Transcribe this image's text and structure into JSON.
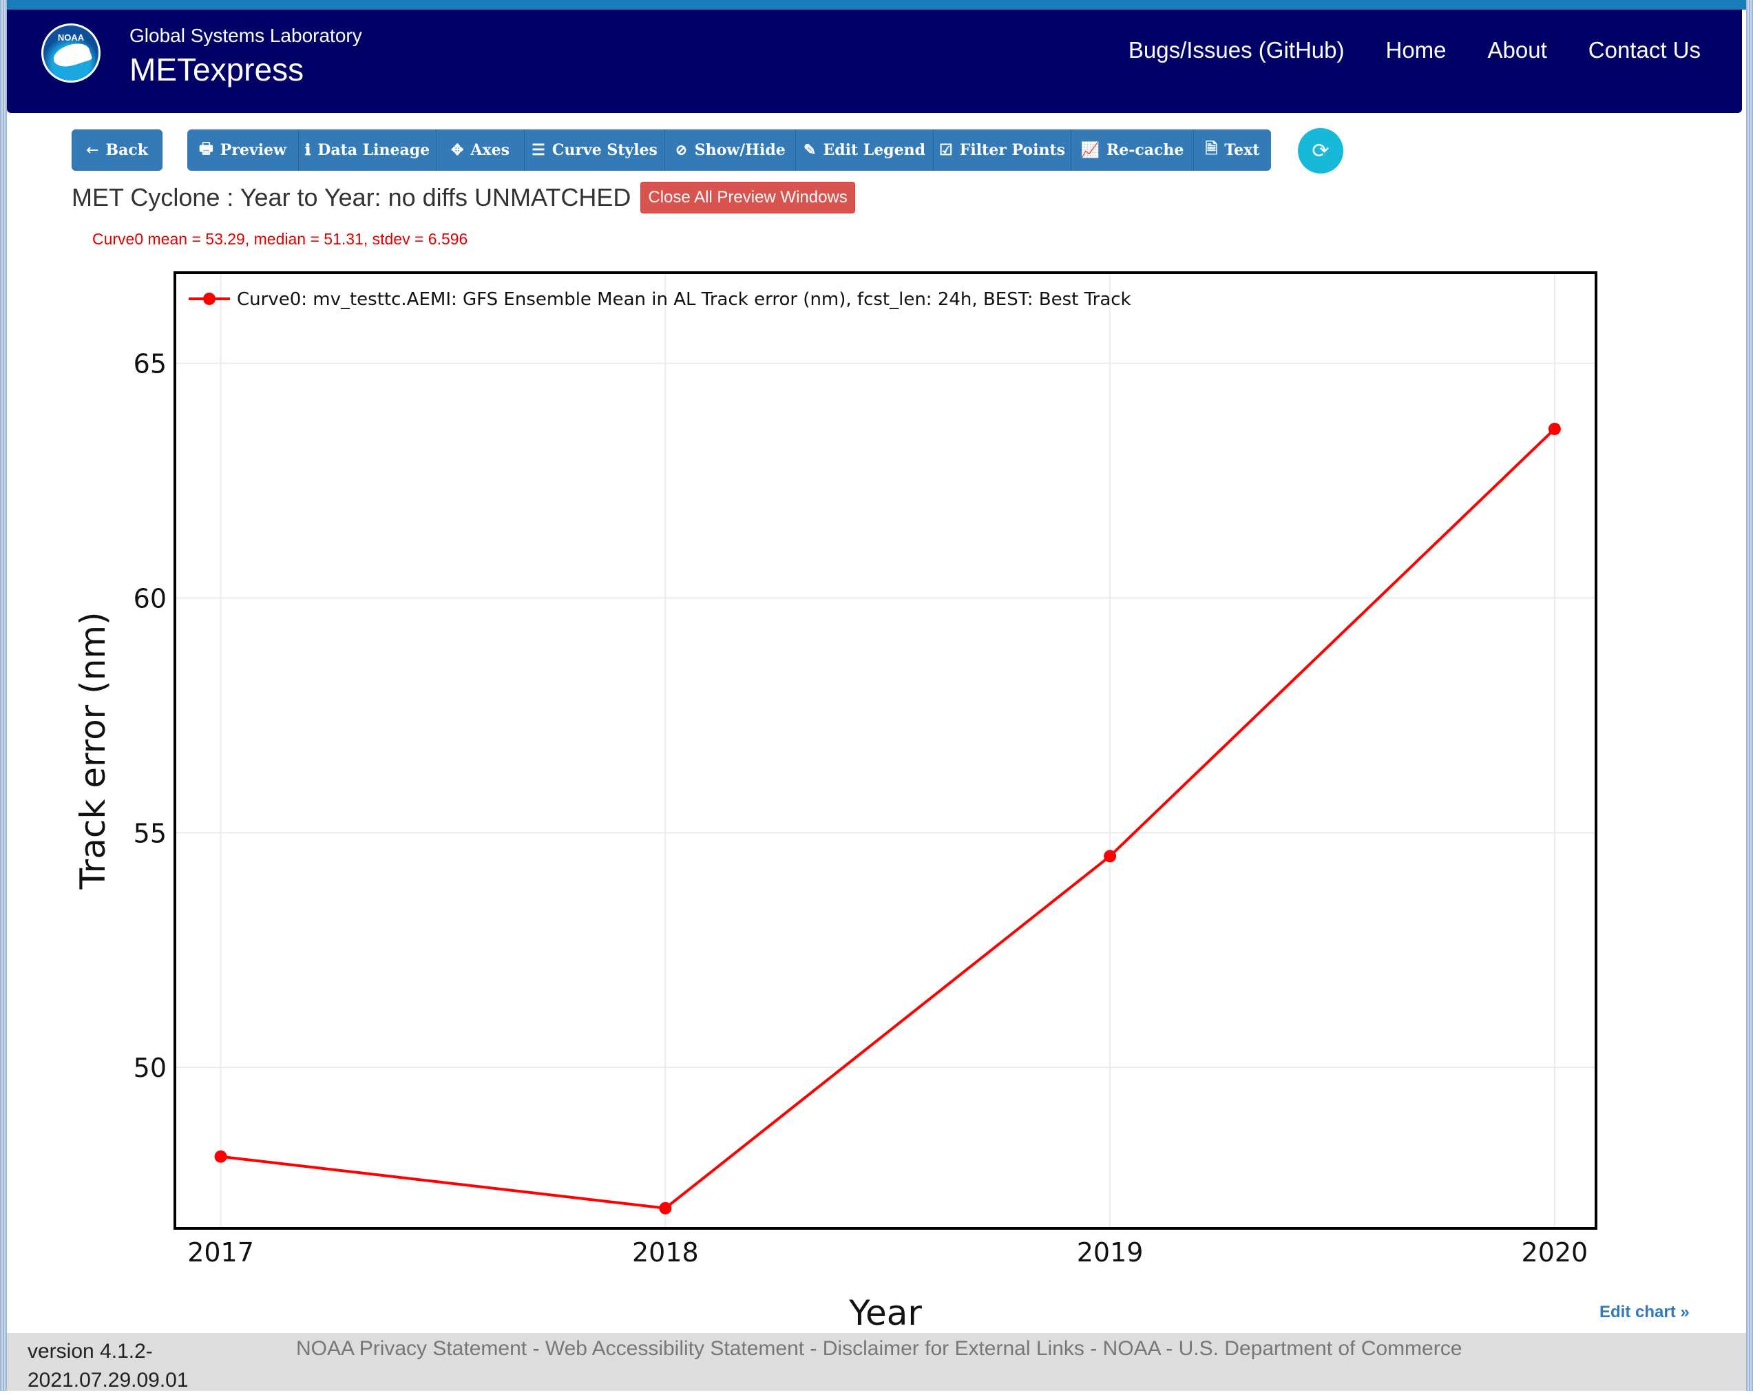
{
  "navbar": {
    "logo_text": "NOAA",
    "org": "Global Systems Laboratory",
    "app": "METexpress",
    "links": [
      "Bugs/Issues (GitHub)",
      "Home",
      "About",
      "Contact Us"
    ]
  },
  "toolbar": {
    "back": "Back",
    "buttons": [
      {
        "label": "Preview",
        "icon": "printer-icon",
        "glyph": "🖶"
      },
      {
        "label": "Data Lineage",
        "icon": "info-icon",
        "glyph": "ℹ"
      },
      {
        "label": "Axes",
        "icon": "arrows-icon",
        "glyph": "✥"
      },
      {
        "label": "Curve Styles",
        "icon": "list-icon",
        "glyph": "☰"
      },
      {
        "label": "Show/Hide",
        "icon": "eye-slash-icon",
        "glyph": "⊘"
      },
      {
        "label": "Edit Legend",
        "icon": "pencil-icon",
        "glyph": "✎"
      },
      {
        "label": "Filter Points",
        "icon": "checkbox-icon",
        "glyph": "☑"
      },
      {
        "label": "Re-cache",
        "icon": "line-chart-icon",
        "glyph": "📈"
      },
      {
        "label": "Text",
        "icon": "document-icon",
        "glyph": "🗎"
      }
    ],
    "refresh_icon": "refresh-icon"
  },
  "page": {
    "title": "MET Cyclone : Year to Year: no diffs UNMATCHED",
    "close_all": "Close All Preview Windows",
    "stats": "Curve0 mean = 53.29, median = 51.31, stdev = 6.596",
    "edit_chart": "Edit chart »"
  },
  "chart_data": {
    "type": "line",
    "title": "",
    "xlabel": "Year",
    "ylabel": "Track error (nm)",
    "x": [
      2017,
      2018,
      2019,
      2020
    ],
    "x_ticks": [
      "2017",
      "2018",
      "2019",
      "2020"
    ],
    "y_ticks": [
      50,
      55,
      60,
      65
    ],
    "xlim": [
      2016.9,
      2020.09
    ],
    "ylim": [
      46.6,
      66.9
    ],
    "grid": true,
    "legend_position": "top-left",
    "series": [
      {
        "name": "Curve0: mv_testtc.AEMI: GFS Ensemble Mean in AL Track error (nm), fcst_len: 24h, BEST: Best Track",
        "color": "#ff0000",
        "values": [
          48.1,
          47.0,
          54.5,
          63.6
        ]
      }
    ]
  },
  "footer": {
    "version": "version 4.1.2-2021.07.29.09.01",
    "links": [
      "NOAA Privacy Statement",
      "Web Accessibility Statement",
      "Disclaimer for External Links",
      "NOAA",
      "U.S. Department of Commerce"
    ]
  }
}
